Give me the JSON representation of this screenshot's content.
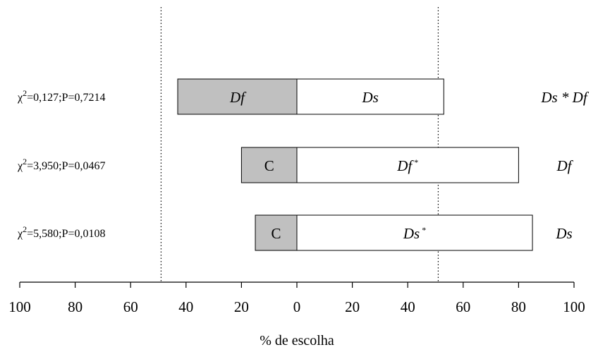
{
  "chart_data": {
    "type": "bar",
    "orientation": "horizontal-diverging",
    "xlabel": "% de escolha",
    "xlim": [
      -100,
      100
    ],
    "x_ticks": [
      -100,
      -80,
      -60,
      -40,
      -20,
      0,
      20,
      40,
      60,
      80,
      100
    ],
    "x_tick_labels": [
      "100",
      "80",
      "60",
      "40",
      "20",
      "0",
      "20",
      "40",
      "60",
      "80",
      "100"
    ],
    "reference_lines": [
      -49,
      51
    ],
    "colors": {
      "left": "#c0c0c0",
      "right": "#ffffff",
      "stroke": "#000000"
    },
    "rows": [
      {
        "stat_chi": "χ",
        "stat_sup": "2",
        "stat_rest": "=0,127;P=0,7214",
        "left_value": -43,
        "left_label": "Df",
        "left_italic": true,
        "right_value": 53,
        "right_label": "Ds",
        "right_star": "",
        "right_italic": true,
        "outcome": "Ds * Df"
      },
      {
        "stat_chi": "χ",
        "stat_sup": "2",
        "stat_rest": "=3,950;P=0,0467",
        "left_value": -20,
        "left_label": "C",
        "left_italic": false,
        "right_value": 80,
        "right_label": "Df",
        "right_star": "*",
        "right_italic": true,
        "outcome": "Df"
      },
      {
        "stat_chi": "χ",
        "stat_sup": "2",
        "stat_rest": "=5,580;P=0,0108",
        "left_value": -15,
        "left_label": "C",
        "left_italic": false,
        "right_value": 85,
        "right_label": "Ds",
        "right_star": "*",
        "right_italic": true,
        "outcome": "Ds"
      }
    ]
  }
}
